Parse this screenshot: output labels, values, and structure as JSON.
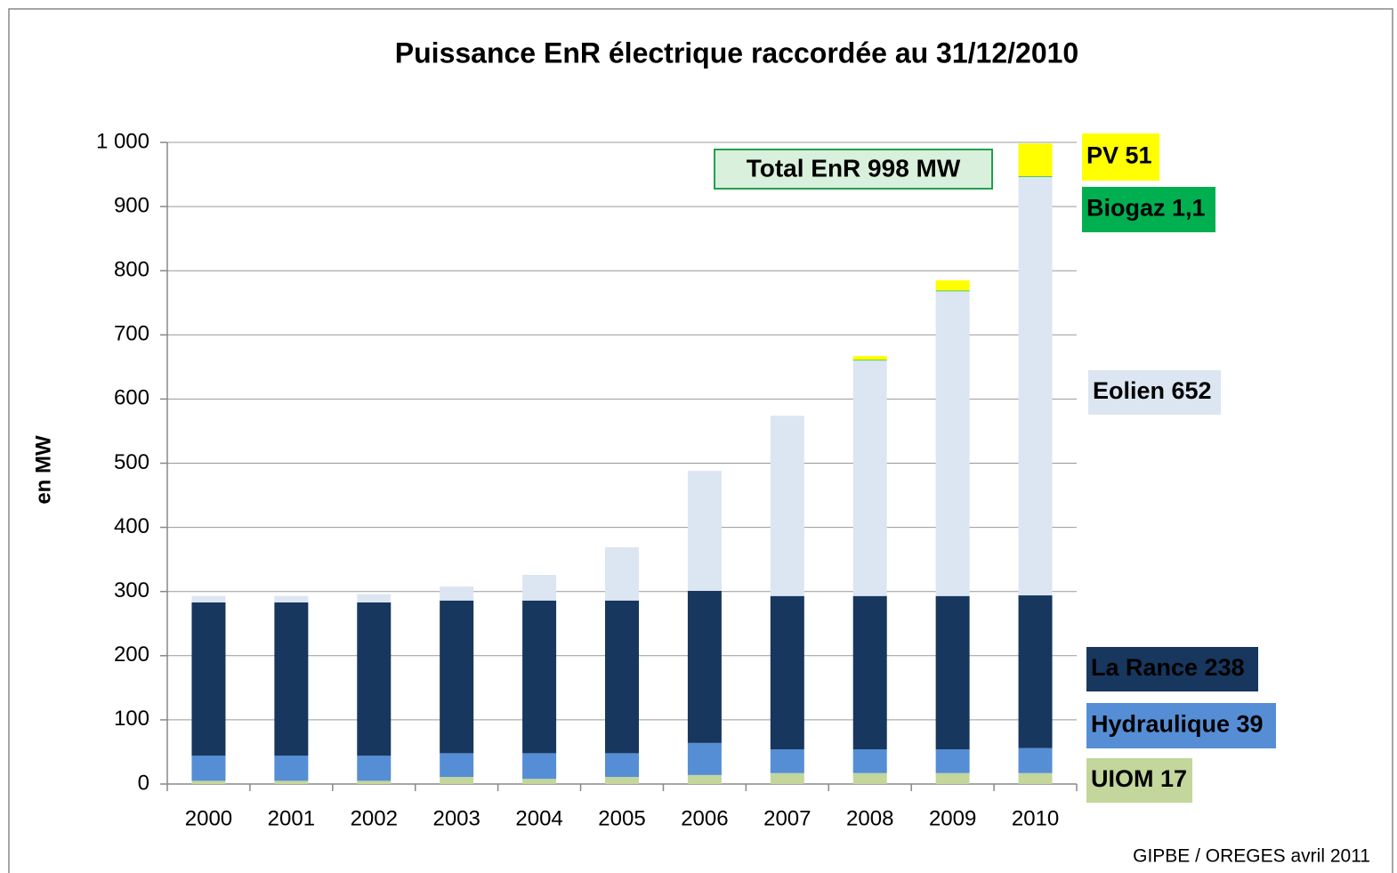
{
  "chart_data": {
    "type": "bar",
    "stacked": true,
    "title": "Puissance EnR électrique raccordée au 31/12/2010",
    "y_label": "en MW",
    "annotation": "Total EnR 998 MW",
    "source": "GIPBE / OREGES avril 2011",
    "categories": [
      "2000",
      "2001",
      "2002",
      "2003",
      "2004",
      "2005",
      "2006",
      "2007",
      "2008",
      "2009",
      "2010"
    ],
    "series": [
      {
        "name": "UIOM 17",
        "color": "#c3d69b",
        "label_color": "#000000",
        "values": [
          5,
          5,
          5,
          11,
          8,
          11,
          14,
          17,
          17,
          17,
          17
        ]
      },
      {
        "name": "Hydraulique 39",
        "color": "#558ed5",
        "label_color": "#ffffff",
        "values": [
          39,
          39,
          39,
          37,
          40,
          37,
          50,
          37,
          37,
          37,
          39
        ]
      },
      {
        "name": "La Rance 238",
        "color": "#17375e",
        "label_color": "#ffffff",
        "values": [
          239,
          239,
          239,
          238,
          238,
          238,
          237,
          239,
          239,
          239,
          238
        ]
      },
      {
        "name": "Eolien 652",
        "color": "#dce6f2",
        "label_color": "#000000",
        "values": [
          10,
          10,
          13,
          22,
          40,
          83,
          187,
          281,
          367,
          475,
          652
        ]
      },
      {
        "name": "Biogaz 1,1",
        "color": "#00b050",
        "label_color": "#ffffff",
        "values": [
          0,
          0,
          0,
          0,
          0,
          0,
          0,
          0,
          1,
          1,
          1.1
        ]
      },
      {
        "name": "PV 51",
        "color": "#ffff00",
        "label_color": "#000000",
        "values": [
          0,
          0,
          0,
          0,
          0,
          0,
          0,
          0,
          6,
          16,
          51
        ]
      }
    ],
    "ylim": [
      0,
      1000
    ],
    "yticks": [
      0,
      100,
      200,
      300,
      400,
      500,
      600,
      700,
      800,
      900,
      {
        "value": 1000,
        "label": "1 000"
      }
    ],
    "grid": true
  }
}
